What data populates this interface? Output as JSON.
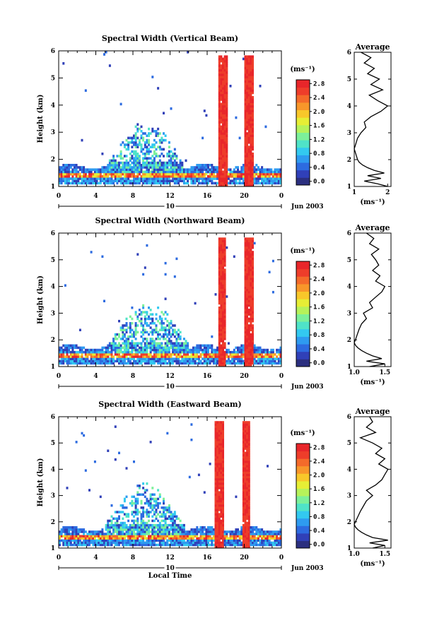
{
  "colormap": [
    "#2b2f7f",
    "#3040b8",
    "#2d6be0",
    "#2e9bf0",
    "#33c9f0",
    "#4fe3c8",
    "#7cf09a",
    "#b6f25a",
    "#e6ee35",
    "#f8c72a",
    "#f8962a",
    "#f46a2a",
    "#ee3d2a",
    "#e8262a"
  ],
  "chart_data": [
    {
      "type": "heatmap",
      "title": "Spectral Width (Vertical Beam)",
      "xlabel": "",
      "ylabel": "Height (km)",
      "x_ticks": [
        "0",
        "4",
        "8",
        "12",
        "16",
        "20",
        "0"
      ],
      "xlim": [
        0,
        24
      ],
      "y_ticks": [
        "1",
        "2",
        "3",
        "4",
        "5",
        "6"
      ],
      "ylim": [
        1,
        6
      ],
      "date_label": "10",
      "date_month": "Jun 2003",
      "colorbar": {
        "unit": "(ms⁻¹)",
        "ticks": [
          "0.0",
          "0.4",
          "0.8",
          "1.2",
          "1.6",
          "2.0",
          "2.4",
          "2.8"
        ],
        "min": 0.0,
        "max": 2.8
      },
      "features": {
        "bands": [
          [
            17.3,
            18.2
          ],
          [
            20.0,
            21.0
          ]
        ],
        "burst_x": [
          5.4,
          13.3
        ],
        "burst_top": [
          1.9,
          3.5
        ]
      },
      "average_profile": {
        "title": "Average",
        "xlabel": "(ms⁻¹)",
        "x_ticks": [
          "1",
          "2"
        ],
        "xlim": [
          1.0,
          2.1
        ],
        "y_ticks": [
          "1",
          "2",
          "3",
          "4",
          "5",
          "6"
        ],
        "ylim": [
          1,
          6
        ],
        "height": [
          1.0,
          1.1,
          1.2,
          1.3,
          1.4,
          1.5,
          1.6,
          1.7,
          1.8,
          1.9,
          2.0,
          2.2,
          2.4,
          2.6,
          2.8,
          3.0,
          3.2,
          3.4,
          3.6,
          3.8,
          4.0,
          4.2,
          4.4,
          4.6,
          4.8,
          5.0,
          5.2,
          5.4,
          5.6,
          5.8,
          6.0
        ],
        "values": [
          2.0,
          1.7,
          1.3,
          1.8,
          1.4,
          1.9,
          1.6,
          1.4,
          1.25,
          1.15,
          1.1,
          1.05,
          1.0,
          1.05,
          1.1,
          1.2,
          1.35,
          1.3,
          1.5,
          1.8,
          2.0,
          1.7,
          1.45,
          1.85,
          1.5,
          1.75,
          1.4,
          1.6,
          1.3,
          1.5,
          1.2
        ]
      }
    },
    {
      "type": "heatmap",
      "title": "Spectral Width (Northward Beam)",
      "xlabel": "",
      "ylabel": "Height (km)",
      "x_ticks": [
        "0",
        "4",
        "8",
        "12",
        "16",
        "20",
        "0"
      ],
      "xlim": [
        0,
        24
      ],
      "y_ticks": [
        "1",
        "2",
        "3",
        "4",
        "5",
        "6"
      ],
      "ylim": [
        1,
        6
      ],
      "date_label": "10",
      "date_month": "Jun 2003",
      "colorbar": {
        "unit": "(ms⁻¹)",
        "ticks": [
          "0.0",
          "0.4",
          "0.8",
          "1.2",
          "1.6",
          "2.0",
          "2.4",
          "2.8"
        ],
        "min": 0.0,
        "max": 2.8
      },
      "features": {
        "bands": [
          [
            17.2,
            18.0
          ],
          [
            20.0,
            21.0
          ]
        ],
        "burst_x": [
          5.4,
          14.0
        ],
        "burst_top": [
          1.9,
          3.5
        ]
      },
      "average_profile": {
        "title": "Average",
        "xlabel": "(ms⁻¹)",
        "x_ticks": [
          "1.0",
          "1.5"
        ],
        "xlim": [
          1.0,
          1.6
        ],
        "y_ticks": [
          "1",
          "2",
          "3",
          "4",
          "5",
          "6"
        ],
        "ylim": [
          1,
          6
        ],
        "height": [
          1.0,
          1.1,
          1.2,
          1.3,
          1.4,
          1.5,
          1.6,
          1.7,
          1.8,
          1.9,
          2.0,
          2.2,
          2.4,
          2.6,
          2.8,
          3.0,
          3.2,
          3.4,
          3.6,
          3.8,
          4.0,
          4.2,
          4.4,
          4.6,
          4.8,
          5.0,
          5.2,
          5.4,
          5.6,
          5.8,
          6.0
        ],
        "values": [
          1.25,
          1.5,
          1.2,
          1.45,
          1.3,
          1.2,
          1.12,
          1.06,
          1.02,
          1.0,
          1.02,
          1.05,
          1.08,
          1.12,
          1.2,
          1.15,
          1.3,
          1.25,
          1.35,
          1.45,
          1.5,
          1.35,
          1.42,
          1.3,
          1.4,
          1.35,
          1.28,
          1.4,
          1.25,
          1.32,
          1.2
        ]
      }
    },
    {
      "type": "heatmap",
      "title": "Spectral Width (Eastward Beam)",
      "xlabel": "Local Time",
      "ylabel": "Height (km)",
      "x_ticks": [
        "0",
        "4",
        "8",
        "12",
        "16",
        "20",
        "0"
      ],
      "xlim": [
        0,
        24
      ],
      "y_ticks": [
        "1",
        "2",
        "3",
        "4",
        "5",
        "6"
      ],
      "ylim": [
        1,
        6
      ],
      "date_label": "10",
      "date_month": "Jun 2003",
      "colorbar": {
        "unit": "(ms⁻¹)",
        "ticks": [
          "0.0",
          "0.4",
          "0.8",
          "1.2",
          "1.6",
          "2.0",
          "2.4",
          "2.8"
        ],
        "min": 0.0,
        "max": 2.8
      },
      "features": {
        "bands": [
          [
            16.9,
            17.8
          ],
          [
            19.8,
            20.7
          ]
        ],
        "burst_x": [
          5.0,
          13.5
        ],
        "burst_top": [
          1.9,
          3.5
        ]
      },
      "average_profile": {
        "title": "Average",
        "xlabel": "(ms⁻¹)",
        "x_ticks": [
          "1.0",
          "1.5"
        ],
        "xlim": [
          1.0,
          1.6
        ],
        "y_ticks": [
          "1",
          "2",
          "3",
          "4",
          "5",
          "6"
        ],
        "ylim": [
          1,
          6
        ],
        "height": [
          1.0,
          1.1,
          1.2,
          1.3,
          1.4,
          1.5,
          1.6,
          1.7,
          1.8,
          1.9,
          2.0,
          2.2,
          2.4,
          2.6,
          2.8,
          3.0,
          3.2,
          3.4,
          3.6,
          3.8,
          4.0,
          4.2,
          4.4,
          4.6,
          4.8,
          5.0,
          5.2,
          5.4,
          5.6,
          5.8,
          6.0
        ],
        "values": [
          1.3,
          1.5,
          1.25,
          1.55,
          1.3,
          1.2,
          1.12,
          1.06,
          1.02,
          1.0,
          1.02,
          1.06,
          1.1,
          1.15,
          1.2,
          1.3,
          1.2,
          1.35,
          1.45,
          1.5,
          1.55,
          1.4,
          1.5,
          1.35,
          1.45,
          1.3,
          1.1,
          1.35,
          1.2,
          1.3,
          1.25
        ]
      }
    }
  ]
}
